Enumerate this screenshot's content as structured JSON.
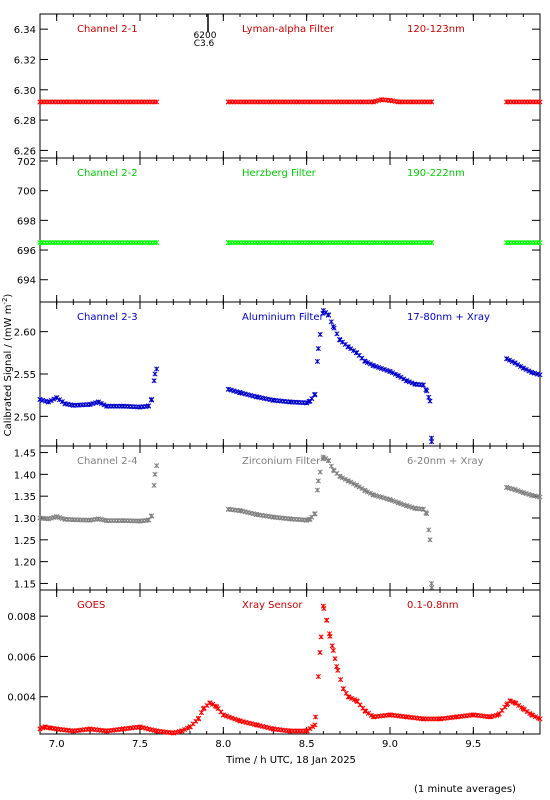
{
  "ylabel": "Calibrated Signal / (mW m",
  "ylabel_sup": "-2",
  "ylabel_end": ")",
  "xlabel": "Time / h UTC, 18 Jan 2025",
  "footnote": "(1 minute averages)",
  "flare_marker": {
    "label_top": "6200",
    "label_bottom": "C3.6",
    "x": 7.9
  },
  "colors": {
    "red": "#ff0000",
    "green": "#00ff00",
    "blue": "#0000cc",
    "grey": "#808080",
    "dark_red": "#cc0000"
  },
  "chart_data": [
    {
      "type": "scatter",
      "name": "Channel 2-1",
      "filter": "Lyman-alpha Filter",
      "band": "120-123nm",
      "color": "#ff0000",
      "label_color": "#cc0000",
      "xlim": [
        6.9,
        9.9
      ],
      "ylim": [
        6.255,
        6.35
      ],
      "yticks": [
        6.26,
        6.28,
        6.3,
        6.32,
        6.34
      ],
      "ytick_labels": [
        "6.26",
        "6.28",
        "6.30",
        "6.32",
        "6.34"
      ],
      "points": [
        [
          6.9,
          6.292
        ],
        [
          7.6,
          6.292
        ],
        [
          8.03,
          6.292
        ],
        [
          8.9,
          6.292
        ],
        [
          8.95,
          6.2935
        ],
        [
          9.0,
          6.293
        ],
        [
          9.05,
          6.292
        ],
        [
          9.25,
          6.292
        ],
        [
          9.7,
          6.292
        ],
        [
          9.9,
          6.292
        ]
      ],
      "segments": [
        [
          6.9,
          7.6
        ],
        [
          8.03,
          9.25
        ],
        [
          9.7,
          9.9
        ]
      ]
    },
    {
      "type": "scatter",
      "name": "Channel 2-2",
      "filter": "Herzberg Filter",
      "band": "190-222nm",
      "color": "#00ff00",
      "label_color": "#00cc00",
      "xlim": [
        6.9,
        9.9
      ],
      "ylim": [
        692.5,
        702.2
      ],
      "yticks": [
        694,
        696,
        698,
        700,
        702
      ],
      "ytick_labels": [
        "694",
        "696",
        "698",
        "700",
        "702"
      ],
      "points": [
        [
          6.9,
          696.5
        ],
        [
          7.6,
          696.5
        ],
        [
          8.03,
          696.5
        ],
        [
          9.25,
          696.5
        ],
        [
          9.7,
          696.5
        ],
        [
          9.9,
          696.5
        ]
      ],
      "segments": [
        [
          6.9,
          7.6
        ],
        [
          8.03,
          9.25
        ],
        [
          9.7,
          9.9
        ]
      ]
    },
    {
      "type": "scatter",
      "name": "Channel 2-3",
      "filter": "Aluminium Filter",
      "band": "17-80nm + Xray",
      "color": "#0000cc",
      "label_color": "#0000cc",
      "xlim": [
        6.9,
        9.9
      ],
      "ylim": [
        2.465,
        2.635
      ],
      "yticks": [
        2.5,
        2.55,
        2.6
      ],
      "ytick_labels": [
        "2.50",
        "2.55",
        "2.60"
      ],
      "points": [
        [
          6.9,
          2.52
        ],
        [
          6.95,
          2.517
        ],
        [
          7.0,
          2.522
        ],
        [
          7.05,
          2.515
        ],
        [
          7.1,
          2.513
        ],
        [
          7.2,
          2.514
        ],
        [
          7.25,
          2.517
        ],
        [
          7.3,
          2.512
        ],
        [
          7.4,
          2.512
        ],
        [
          7.5,
          2.511
        ],
        [
          7.55,
          2.512
        ],
        [
          7.57,
          2.52
        ],
        [
          7.59,
          2.55
        ],
        [
          7.6,
          2.556
        ],
        [
          8.03,
          2.532
        ],
        [
          8.1,
          2.528
        ],
        [
          8.2,
          2.523
        ],
        [
          8.3,
          2.519
        ],
        [
          8.4,
          2.517
        ],
        [
          8.5,
          2.516
        ],
        [
          8.52,
          2.518
        ],
        [
          8.55,
          2.526
        ],
        [
          8.57,
          2.58
        ],
        [
          8.6,
          2.625
        ],
        [
          8.63,
          2.62
        ],
        [
          8.66,
          2.606
        ],
        [
          8.7,
          2.59
        ],
        [
          8.75,
          2.582
        ],
        [
          8.8,
          2.575
        ],
        [
          8.85,
          2.565
        ],
        [
          8.9,
          2.56
        ],
        [
          9.0,
          2.553
        ],
        [
          9.05,
          2.548
        ],
        [
          9.1,
          2.542
        ],
        [
          9.15,
          2.538
        ],
        [
          9.2,
          2.537
        ],
        [
          9.22,
          2.53
        ],
        [
          9.24,
          2.518
        ],
        [
          9.25,
          2.47
        ],
        [
          9.7,
          2.568
        ],
        [
          9.75,
          2.563
        ],
        [
          9.8,
          2.557
        ],
        [
          9.85,
          2.552
        ],
        [
          9.9,
          2.549
        ]
      ],
      "segments": [
        [
          6.9,
          7.6
        ],
        [
          8.03,
          9.25
        ],
        [
          9.7,
          9.9
        ]
      ]
    },
    {
      "type": "scatter",
      "name": "Channel 2-4",
      "filter": "Zirconium Filter",
      "band": "6-20nm + Xray",
      "color": "#808080",
      "label_color": "#808080",
      "xlim": [
        6.9,
        9.9
      ],
      "ylim": [
        1.135,
        1.465
      ],
      "yticks": [
        1.15,
        1.2,
        1.25,
        1.3,
        1.35,
        1.4,
        1.45
      ],
      "ytick_labels": [
        "1.15",
        "1.20",
        "1.25",
        "1.30",
        "1.35",
        "1.40",
        "1.45"
      ],
      "points": [
        [
          6.9,
          1.3
        ],
        [
          6.95,
          1.298
        ],
        [
          7.0,
          1.303
        ],
        [
          7.05,
          1.297
        ],
        [
          7.1,
          1.296
        ],
        [
          7.2,
          1.295
        ],
        [
          7.25,
          1.298
        ],
        [
          7.3,
          1.294
        ],
        [
          7.4,
          1.294
        ],
        [
          7.5,
          1.293
        ],
        [
          7.55,
          1.295
        ],
        [
          7.57,
          1.305
        ],
        [
          7.59,
          1.4
        ],
        [
          7.6,
          1.42
        ],
        [
          8.03,
          1.32
        ],
        [
          8.1,
          1.317
        ],
        [
          8.2,
          1.308
        ],
        [
          8.3,
          1.302
        ],
        [
          8.4,
          1.298
        ],
        [
          8.5,
          1.295
        ],
        [
          8.52,
          1.297
        ],
        [
          8.55,
          1.31
        ],
        [
          8.57,
          1.385
        ],
        [
          8.6,
          1.44
        ],
        [
          8.63,
          1.432
        ],
        [
          8.66,
          1.41
        ],
        [
          8.7,
          1.395
        ],
        [
          8.75,
          1.385
        ],
        [
          8.8,
          1.375
        ],
        [
          8.85,
          1.363
        ],
        [
          8.9,
          1.353
        ],
        [
          9.0,
          1.342
        ],
        [
          9.05,
          1.335
        ],
        [
          9.1,
          1.328
        ],
        [
          9.15,
          1.322
        ],
        [
          9.2,
          1.32
        ],
        [
          9.22,
          1.31
        ],
        [
          9.24,
          1.25
        ],
        [
          9.25,
          1.14
        ],
        [
          9.7,
          1.37
        ],
        [
          9.75,
          1.365
        ],
        [
          9.8,
          1.358
        ],
        [
          9.85,
          1.352
        ],
        [
          9.9,
          1.348
        ]
      ],
      "segments": [
        [
          6.9,
          7.6
        ],
        [
          8.03,
          9.25
        ],
        [
          9.7,
          9.9
        ]
      ]
    },
    {
      "type": "scatter",
      "name": "GOES",
      "filter": "Xray Sensor",
      "band": "0.1-0.8nm",
      "color": "#ff0000",
      "label_color": "#cc0000",
      "xlim": [
        6.9,
        9.9
      ],
      "ylim": [
        0.00215,
        0.0093
      ],
      "xticks": [
        7.0,
        7.5,
        8.0,
        8.5,
        9.0,
        9.5
      ],
      "xtick_labels": [
        "7.0",
        "7.5",
        "8.0",
        "8.5",
        "9.0",
        "9.5"
      ],
      "yticks": [
        0.004,
        0.006,
        0.008
      ],
      "ytick_labels": [
        "0.004",
        "0.006",
        "0.008"
      ],
      "points": [
        [
          6.9,
          0.0024
        ],
        [
          6.93,
          0.0025
        ],
        [
          6.96,
          0.00245
        ],
        [
          7.0,
          0.0024
        ],
        [
          7.1,
          0.0023
        ],
        [
          7.2,
          0.0024
        ],
        [
          7.3,
          0.0023
        ],
        [
          7.4,
          0.0024
        ],
        [
          7.5,
          0.0025
        ],
        [
          7.6,
          0.0023
        ],
        [
          7.7,
          0.0022
        ],
        [
          7.75,
          0.0023
        ],
        [
          7.8,
          0.0025
        ],
        [
          7.85,
          0.0029
        ],
        [
          7.88,
          0.0034
        ],
        [
          7.92,
          0.0037
        ],
        [
          7.96,
          0.0035
        ],
        [
          8.0,
          0.0031
        ],
        [
          8.1,
          0.0028
        ],
        [
          8.2,
          0.0026
        ],
        [
          8.3,
          0.0024
        ],
        [
          8.4,
          0.0023
        ],
        [
          8.5,
          0.0023
        ],
        [
          8.55,
          0.0026
        ],
        [
          8.58,
          0.0062
        ],
        [
          8.6,
          0.0085
        ],
        [
          8.62,
          0.0078
        ],
        [
          8.64,
          0.007
        ],
        [
          8.66,
          0.0063
        ],
        [
          8.68,
          0.0055
        ],
        [
          8.72,
          0.0044
        ],
        [
          8.75,
          0.004
        ],
        [
          8.8,
          0.0038
        ],
        [
          8.85,
          0.0033
        ],
        [
          8.9,
          0.003
        ],
        [
          9.0,
          0.0031
        ],
        [
          9.1,
          0.003
        ],
        [
          9.2,
          0.0029
        ],
        [
          9.3,
          0.0029
        ],
        [
          9.4,
          0.003
        ],
        [
          9.5,
          0.0031
        ],
        [
          9.6,
          0.003
        ],
        [
          9.65,
          0.0031
        ],
        [
          9.7,
          0.0036
        ],
        [
          9.72,
          0.0038
        ],
        [
          9.75,
          0.0037
        ],
        [
          9.8,
          0.0034
        ],
        [
          9.85,
          0.0031
        ],
        [
          9.9,
          0.0029
        ]
      ],
      "segments": []
    }
  ]
}
